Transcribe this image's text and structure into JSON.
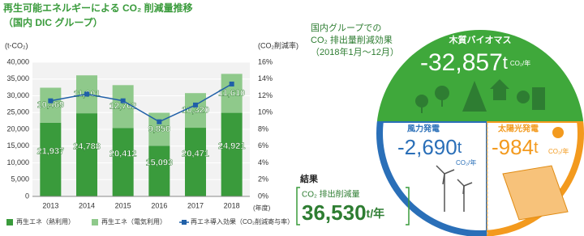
{
  "chart_data": {
    "type": "bar",
    "title": "再生可能エネルギーによる CO₂ 削減量推移",
    "subtitle": "（国内 DIC グループ）",
    "y_label": "(t-CO₂)",
    "y2_label": "(CO₂削減率)",
    "x_label": "(年度)",
    "categories": [
      "2013",
      "2014",
      "2015",
      "2016",
      "2017",
      "2018"
    ],
    "series": [
      {
        "name": "再生エネ（熱利用）",
        "color": "#3a9b3c",
        "values": [
          21937,
          24788,
          20412,
          15093,
          20471,
          24921
        ],
        "value_labels": [
          "21,937",
          "24,788",
          "20,412",
          "15,093",
          "20,471",
          "24,921"
        ]
      },
      {
        "name": "再生エネ（電気利用）",
        "color": "#8fc98b",
        "values": [
          10469,
          11301,
          12762,
          9850,
          10320,
          11610
        ],
        "value_labels": [
          "10,469",
          "11,301",
          "12,762",
          "9,850",
          "10,320",
          "11,610"
        ]
      },
      {
        "name": "再エネ導入効果（CO₂削減寄与率）",
        "color": "#2060a8",
        "type": "line",
        "axis": "y2",
        "values": [
          11.4,
          12.2,
          11.4,
          8.9,
          10.9,
          13.4
        ]
      }
    ],
    "stacked": true,
    "ylim": [
      0,
      40000
    ],
    "yticks": [
      0,
      {
        "value": 5000,
        "label": "5,000"
      },
      {
        "value": 10000,
        "label": "10,000"
      },
      {
        "value": 15000,
        "label": "15,000"
      },
      {
        "value": 20000,
        "label": "20,000"
      },
      {
        "value": 25000,
        "label": "25,000"
      },
      {
        "value": 30000,
        "label": "30,000"
      },
      {
        "value": 35000,
        "label": "35,000"
      },
      {
        "value": 40000,
        "label": "40,000"
      }
    ],
    "y2lim": [
      0,
      16
    ],
    "y2ticks": [
      {
        "value": 0,
        "label": "0%"
      },
      {
        "value": 2,
        "label": "2%"
      },
      {
        "value": 4,
        "label": "4%"
      },
      {
        "value": 6,
        "label": "6%"
      },
      {
        "value": 8,
        "label": "8%"
      },
      {
        "value": 10,
        "label": "10%"
      },
      {
        "value": 12,
        "label": "12%"
      },
      {
        "value": 14,
        "label": "14%"
      },
      {
        "value": 16,
        "label": "16%"
      }
    ],
    "grid": true,
    "legend": "bottom"
  },
  "infographic": {
    "heading": [
      "国内グループでの",
      "CO₂ 排出量削減効果",
      "（2018年1月〜12月）"
    ],
    "biomass": {
      "label": "木質バイオマス",
      "value": "-32,857",
      "unit": "t",
      "per": "CO₂/年"
    },
    "wind": {
      "label": "風力発電",
      "value": "-2,690",
      "unit": "t",
      "per": "CO₂/年"
    },
    "solar": {
      "label": "太陽光発電",
      "value": "-984",
      "unit": "t",
      "per": "CO₂/年"
    },
    "result": {
      "label": "結果",
      "caption": "CO₂ 排出削減量",
      "value": "36,530",
      "unit": "t/年"
    }
  }
}
